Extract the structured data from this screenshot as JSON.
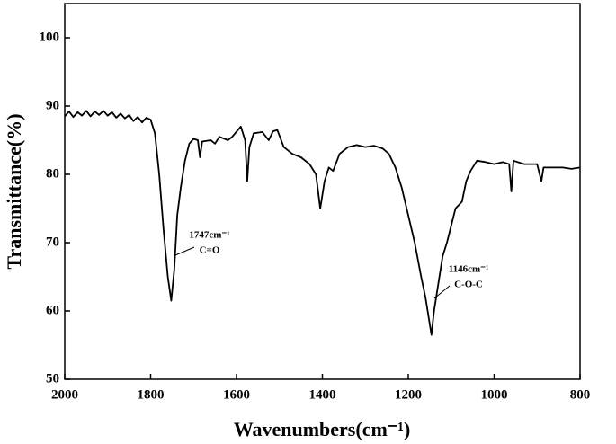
{
  "chart_data": {
    "type": "line",
    "xlabel": "Wavenumbers(cm⁻¹)",
    "ylabel": "Transmittance(%)",
    "x": [
      2000,
      1990,
      1980,
      1970,
      1960,
      1950,
      1940,
      1930,
      1920,
      1910,
      1900,
      1890,
      1880,
      1870,
      1860,
      1850,
      1840,
      1830,
      1820,
      1810,
      1800,
      1790,
      1780,
      1770,
      1760,
      1752,
      1745,
      1738,
      1730,
      1720,
      1710,
      1700,
      1690,
      1685,
      1680,
      1660,
      1650,
      1640,
      1620,
      1610,
      1590,
      1580,
      1575,
      1570,
      1560,
      1540,
      1525,
      1515,
      1505,
      1490,
      1470,
      1450,
      1430,
      1415,
      1405,
      1395,
      1385,
      1375,
      1360,
      1340,
      1320,
      1300,
      1280,
      1260,
      1245,
      1230,
      1215,
      1200,
      1185,
      1170,
      1160,
      1146,
      1140,
      1130,
      1120,
      1110,
      1100,
      1090,
      1075,
      1065,
      1055,
      1040,
      1020,
      1000,
      980,
      965,
      960,
      955,
      930,
      900,
      890,
      885,
      860,
      840,
      820,
      800
    ],
    "values": [
      88.5,
      89.2,
      88.4,
      89.1,
      88.6,
      89.3,
      88.5,
      89.2,
      88.7,
      89.3,
      88.6,
      89.1,
      88.3,
      88.9,
      88.2,
      88.7,
      87.8,
      88.4,
      87.6,
      88.3,
      88,
      86,
      80,
      72,
      65,
      61.5,
      66,
      74,
      78,
      82,
      84.5,
      85.2,
      85,
      82.5,
      84.8,
      85,
      84.5,
      85.5,
      85,
      85.5,
      87,
      85,
      79,
      84,
      86,
      86.2,
      85,
      86.3,
      86.5,
      84,
      83,
      82.5,
      81.5,
      80,
      75,
      79,
      81,
      80.5,
      83,
      84,
      84.3,
      84,
      84.2,
      83.8,
      83,
      81,
      78,
      74,
      70,
      65,
      62,
      56.5,
      60,
      64,
      68,
      70,
      72.5,
      75,
      76,
      79,
      80.5,
      82,
      81.8,
      81.5,
      81.8,
      81.5,
      77.5,
      82,
      81.5,
      81.5,
      79,
      81,
      81,
      81,
      80.8,
      81
    ],
    "color": "#000000",
    "xlim": [
      2000,
      800
    ],
    "xticks": [
      2000,
      1800,
      1600,
      1400,
      1200,
      1000,
      800
    ],
    "ylim": [
      50,
      105
    ],
    "yticks": [
      50,
      60,
      70,
      80,
      90,
      100
    ],
    "grid": false,
    "annotations": [
      {
        "lines": [
          "1747cm⁻¹",
          "C=O"
        ]
      },
      {
        "lines": [
          "1146cm⁻¹",
          "C-O-C"
        ]
      }
    ]
  }
}
